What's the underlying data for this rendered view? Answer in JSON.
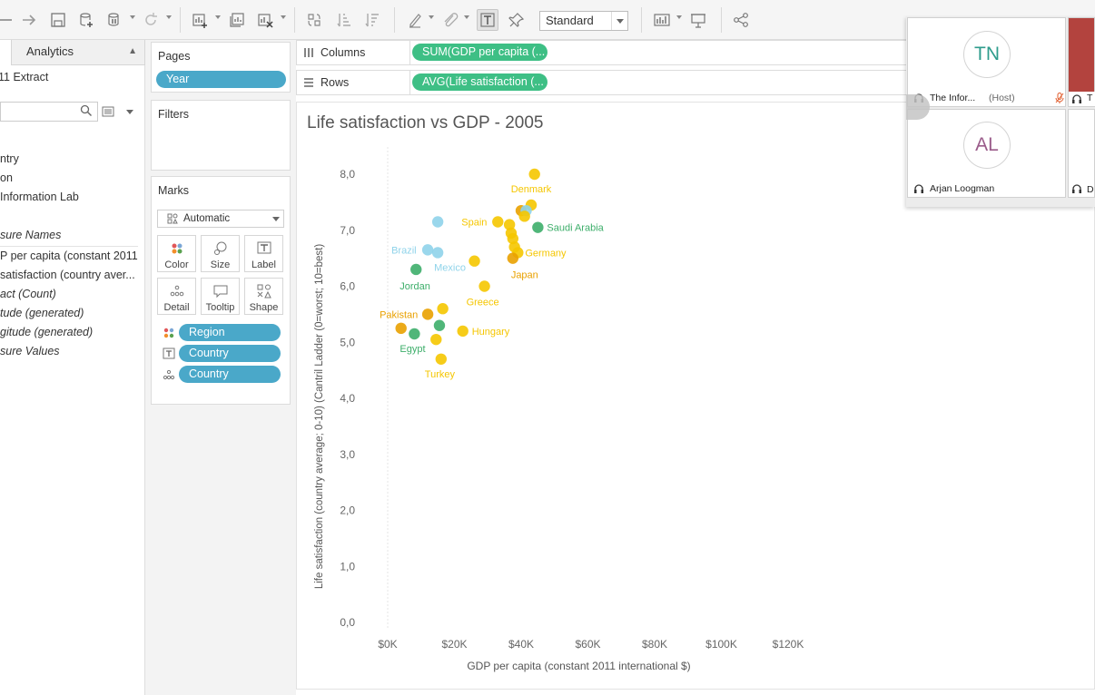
{
  "toolbar": {
    "fit": "Standard",
    "icons": [
      "back-icon",
      "forward-icon",
      "save-icon",
      "new-data-source-icon",
      "pause-update-icon",
      "refresh-icon",
      "new-worksheet-icon",
      "duplicate-sheet-icon",
      "clear-sheet-icon",
      "swap-axes-icon",
      "sort-ascending-icon",
      "sort-descending-icon",
      "highlight-icon",
      "group-icon",
      "show-labels-icon",
      "fix-axes-icon",
      "show-me-icon",
      "presentation-icon",
      "share-icon"
    ]
  },
  "data_pane": {
    "analytics_tab": "Analytics",
    "data_source": "11 Extract",
    "dimensions": [
      "ntry",
      "on",
      "Information Lab",
      "sure Names"
    ],
    "measures": [
      "P per capita (constant 2011 ...",
      "satisfaction (country aver...",
      "act (Count)",
      "tude (generated)",
      "gitude (generated)",
      "sure Values"
    ]
  },
  "cards": {
    "pages": {
      "title": "Pages",
      "pill": "Year"
    },
    "filters": {
      "title": "Filters"
    },
    "marks": {
      "title": "Marks",
      "mark_type": "Automatic",
      "buttons": [
        "Color",
        "Size",
        "Label",
        "Detail",
        "Tooltip",
        "Shape"
      ],
      "fields": [
        "Region",
        "Country",
        "Country"
      ]
    }
  },
  "shelves": {
    "columns": {
      "label": "Columns",
      "pill": "SUM(GDP per capita (..."
    },
    "rows": {
      "label": "Rows",
      "pill": "AVG(Life satisfaction (..."
    }
  },
  "sheet": {
    "title": "Life satisfaction vs GDP - 2005"
  },
  "chart_data": {
    "type": "scatter",
    "title": "Life satisfaction vs GDP - 2005",
    "xlabel": "GDP per capita (constant 2011 international $)",
    "ylabel": "Life satisfaction (country average; 0-10) (Cantril Ladder (0=worst; 10=best)",
    "xlim": [
      0,
      120000
    ],
    "ylim": [
      0,
      8
    ],
    "x_ticks": [
      "$0K",
      "$20K",
      "$40K",
      "$60K",
      "$80K",
      "$100K",
      "$120K"
    ],
    "y_ticks": [
      "0,0",
      "1,0",
      "2,0",
      "3,0",
      "4,0",
      "5,0",
      "6,0",
      "7,0",
      "8,0"
    ],
    "region_colors": {
      "europe": "#f5c600",
      "americas": "#8fd3ea",
      "asia": "#e9a100",
      "mideast_africa": "#3dae6a"
    },
    "points": [
      {
        "x": 44000,
        "y": 8.0,
        "label": "Denmark",
        "region": "europe"
      },
      {
        "x": 45000,
        "y": 7.05,
        "label": "Saudi Arabia",
        "region": "mideast_africa"
      },
      {
        "x": 33000,
        "y": 7.15,
        "label": "Spain",
        "region": "europe"
      },
      {
        "x": 15000,
        "y": 7.15,
        "label": "",
        "region": "americas"
      },
      {
        "x": 15000,
        "y": 6.6,
        "label": "Mexico",
        "region": "americas"
      },
      {
        "x": 12000,
        "y": 6.65,
        "label": "Brazil",
        "region": "americas"
      },
      {
        "x": 39000,
        "y": 6.6,
        "label": "Germany",
        "region": "europe"
      },
      {
        "x": 37500,
        "y": 6.5,
        "label": "Japan",
        "region": "asia"
      },
      {
        "x": 26000,
        "y": 6.45,
        "label": "",
        "region": "europe"
      },
      {
        "x": 8500,
        "y": 6.3,
        "label": "Jordan",
        "region": "mideast_africa"
      },
      {
        "x": 29000,
        "y": 6.0,
        "label": "Greece",
        "region": "europe"
      },
      {
        "x": 16500,
        "y": 5.6,
        "label": "",
        "region": "europe"
      },
      {
        "x": 12000,
        "y": 5.5,
        "label": "Pakistan",
        "region": "asia"
      },
      {
        "x": 15500,
        "y": 5.3,
        "label": "",
        "region": "mideast_africa"
      },
      {
        "x": 22500,
        "y": 5.2,
        "label": "Hungary",
        "region": "europe"
      },
      {
        "x": 4000,
        "y": 5.25,
        "label": "",
        "region": "asia"
      },
      {
        "x": 8000,
        "y": 5.15,
        "label": "Egypt",
        "region": "mideast_africa"
      },
      {
        "x": 14500,
        "y": 5.05,
        "label": "",
        "region": "europe"
      },
      {
        "x": 16000,
        "y": 4.7,
        "label": "Turkey",
        "region": "europe"
      },
      {
        "x": 40000,
        "y": 7.35,
        "label": "",
        "region": "asia"
      },
      {
        "x": 43000,
        "y": 7.45,
        "label": "",
        "region": "europe"
      },
      {
        "x": 41500,
        "y": 7.35,
        "label": "",
        "region": "americas"
      },
      {
        "x": 41000,
        "y": 7.25,
        "label": "",
        "region": "europe"
      },
      {
        "x": 36500,
        "y": 7.1,
        "label": "",
        "region": "europe"
      },
      {
        "x": 37000,
        "y": 6.95,
        "label": "",
        "region": "europe"
      },
      {
        "x": 37500,
        "y": 6.85,
        "label": "",
        "region": "europe"
      },
      {
        "x": 38000,
        "y": 6.7,
        "label": "",
        "region": "europe"
      }
    ]
  },
  "video_call": {
    "participants": [
      {
        "initials": "TN",
        "name": "The Infor...",
        "role": "(Host)"
      },
      {
        "initials": "AL",
        "name": "Arjan Loogman",
        "role": ""
      }
    ],
    "side_names": [
      "T",
      "D"
    ],
    "colors": {
      "tn": "#2e9c8c",
      "al": "#9a5b8a",
      "mic_muted": "#e05a2a"
    }
  }
}
